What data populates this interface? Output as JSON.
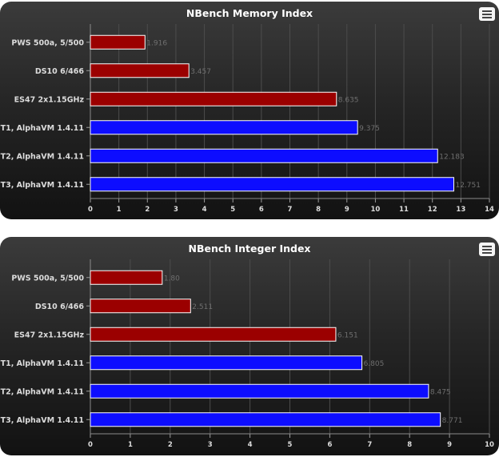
{
  "chart_data": [
    {
      "type": "bar",
      "orientation": "horizontal",
      "title": "NBench Memory Index",
      "categories": [
        "PWS 500a, 5/500",
        "DS10 6/466",
        "ES47 2x1.15GHz",
        "T1, AlphaVM 1.4.11",
        "T2, AlphaVM 1.4.11",
        "T3, AlphaVM 1.4.11"
      ],
      "values": [
        1.916,
        3.457,
        8.635,
        9.375,
        12.183,
        12.751
      ],
      "value_labels": [
        "1.916",
        "3.457",
        "8.635",
        "9.375",
        "12.183",
        "12.751"
      ],
      "bar_colors": [
        "#9b0000",
        "#9b0000",
        "#9b0000",
        "#0d0dff",
        "#0d0dff",
        "#0d0dff"
      ],
      "xlim": [
        0,
        14
      ],
      "x_ticks": [
        "0",
        "1",
        "2",
        "3",
        "4",
        "5",
        "6",
        "7",
        "8",
        "9",
        "10",
        "11",
        "12",
        "13",
        "14"
      ],
      "grid": true,
      "xlabel": "",
      "ylabel": ""
    },
    {
      "type": "bar",
      "orientation": "horizontal",
      "title": "NBench Integer Index",
      "categories": [
        "PWS 500a, 5/500",
        "DS10 6/466",
        "ES47 2x1.15GHz",
        "T1, AlphaVM 1.4.11",
        "T2, AlphaVM 1.4.11",
        "T3, AlphaVM 1.4.11"
      ],
      "values": [
        1.8,
        2.511,
        6.151,
        6.805,
        8.475,
        8.771
      ],
      "value_labels": [
        "1.80",
        "2.511",
        "6.151",
        "6.805",
        "8.475",
        "8.771"
      ],
      "bar_colors": [
        "#9b0000",
        "#9b0000",
        "#9b0000",
        "#0d0dff",
        "#0d0dff",
        "#0d0dff"
      ],
      "xlim": [
        0,
        10
      ],
      "x_ticks": [
        "0",
        "1",
        "2",
        "3",
        "4",
        "5",
        "6",
        "7",
        "8",
        "9",
        "10"
      ],
      "grid": true,
      "xlabel": "",
      "ylabel": ""
    }
  ]
}
